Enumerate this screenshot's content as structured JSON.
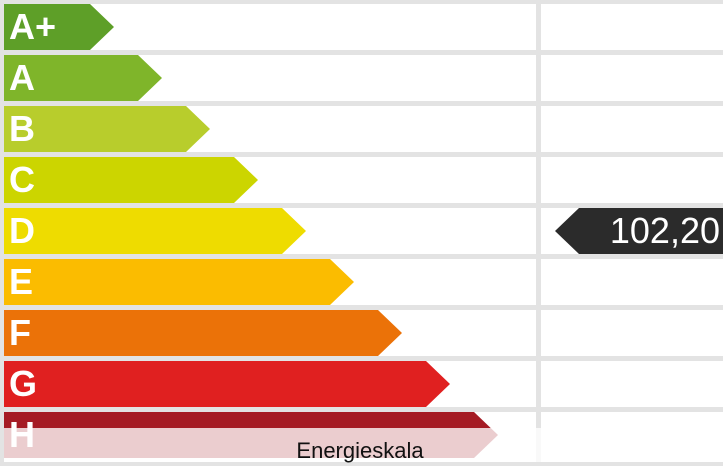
{
  "scale": [
    {
      "label": "A+",
      "color": "#5e9f28"
    },
    {
      "label": "A",
      "color": "#7fb52a"
    },
    {
      "label": "B",
      "color": "#b8cd2c"
    },
    {
      "label": "C",
      "color": "#ccd500"
    },
    {
      "label": "D",
      "color": "#eedc00"
    },
    {
      "label": "E",
      "color": "#fbbc00"
    },
    {
      "label": "F",
      "color": "#eb7208"
    },
    {
      "label": "G",
      "color": "#e02020"
    },
    {
      "label": "H",
      "color": "#a51b24"
    }
  ],
  "indicator": {
    "value": "102,20",
    "rating": "D",
    "color": "#2b2b2b"
  },
  "caption": "Energieskala"
}
